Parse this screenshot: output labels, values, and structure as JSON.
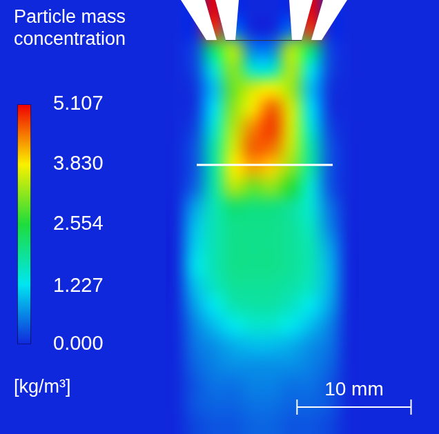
{
  "chart_data": {
    "type": "heatmap",
    "xlim": [
      0,
      38.5
    ],
    "ylim": [
      38.1,
      0
    ],
    "tick_labels": false,
    "grid": false,
    "cells_xlim": [
      14.5,
      31.5
    ],
    "cells_ylim": [
      0,
      38.1
    ],
    "cells": [
      [
        0,
        0,
        5.1,
        0,
        0,
        0,
        0,
        5.1,
        0,
        0
      ],
      [
        0,
        0,
        4.8,
        0.5,
        0,
        0,
        0.5,
        4.8,
        0,
        0
      ],
      [
        0,
        0.2,
        2.2,
        3.4,
        0.6,
        0.6,
        3.4,
        2.2,
        0.2,
        0
      ],
      [
        0,
        0.2,
        1.5,
        3.2,
        1.5,
        1.5,
        3.4,
        1.4,
        0.2,
        0
      ],
      [
        0,
        0.1,
        1.0,
        3.0,
        3.6,
        3.8,
        3.3,
        1.0,
        0.1,
        0
      ],
      [
        0,
        0.1,
        1.2,
        3.2,
        3.9,
        4.6,
        3.6,
        1.2,
        0.1,
        0
      ],
      [
        0,
        0.2,
        1.5,
        3.4,
        4.4,
        4.8,
        3.6,
        1.5,
        0.2,
        0
      ],
      [
        0,
        0.3,
        1.8,
        3.6,
        4.6,
        4.5,
        3.5,
        1.8,
        0.3,
        0
      ],
      [
        0,
        0.3,
        1.8,
        3.8,
        4.2,
        4.0,
        3.2,
        1.8,
        0.3,
        0
      ],
      [
        0,
        0.4,
        1.8,
        3.4,
        3.0,
        3.2,
        2.6,
        1.5,
        0.3,
        0
      ],
      [
        0,
        0.8,
        1.7,
        2.2,
        2.1,
        2.1,
        1.9,
        1.5,
        0.5,
        0
      ],
      [
        0,
        1.0,
        1.7,
        2.0,
        2.0,
        2.0,
        1.9,
        1.6,
        0.6,
        0
      ],
      [
        0,
        1.1,
        1.7,
        2.0,
        2.0,
        2.0,
        1.9,
        1.7,
        0.8,
        0
      ],
      [
        0,
        1.2,
        1.7,
        2.0,
        2.0,
        2.0,
        1.9,
        1.7,
        0.9,
        0
      ],
      [
        0,
        1.0,
        1.6,
        1.9,
        1.9,
        1.9,
        1.8,
        1.6,
        0.9,
        0
      ],
      [
        0,
        0.8,
        1.3,
        1.7,
        1.8,
        1.8,
        1.6,
        1.3,
        0.8,
        0
      ],
      [
        0,
        0.6,
        1.0,
        1.3,
        1.5,
        1.5,
        1.3,
        1.0,
        0.6,
        0
      ],
      [
        0,
        0.5,
        0.7,
        0.9,
        1.0,
        1.0,
        0.9,
        0.7,
        0.5,
        0
      ],
      [
        0,
        0.4,
        0.6,
        0.7,
        0.7,
        0.7,
        0.7,
        0.6,
        0.4,
        0
      ],
      [
        0,
        0.3,
        0.5,
        0.5,
        0.6,
        0.6,
        0.5,
        0.5,
        0.3,
        0
      ],
      [
        0,
        0.3,
        0.4,
        0.4,
        0.5,
        0.5,
        0.4,
        0.4,
        0.3,
        0
      ],
      [
        0,
        0.2,
        0.3,
        0.3,
        0.4,
        0.4,
        0.3,
        0.3,
        0.2,
        0
      ]
    ],
    "colorbar": {
      "title": "Particle mass concentration",
      "unit": "[kg/m³]",
      "range": [
        0,
        5.107
      ],
      "ticks": [
        {
          "value": 0,
          "label": "0.000"
        },
        1.227,
        2.554,
        {
          "value": 3.83,
          "label": "3.830"
        },
        5.107
      ],
      "colors": [
        "#1028dc",
        "#00e6f0",
        "#1edc3c",
        "#faf000",
        "#f00000"
      ]
    },
    "scale_bar": {
      "label": "10 mm",
      "length": 10
    }
  }
}
